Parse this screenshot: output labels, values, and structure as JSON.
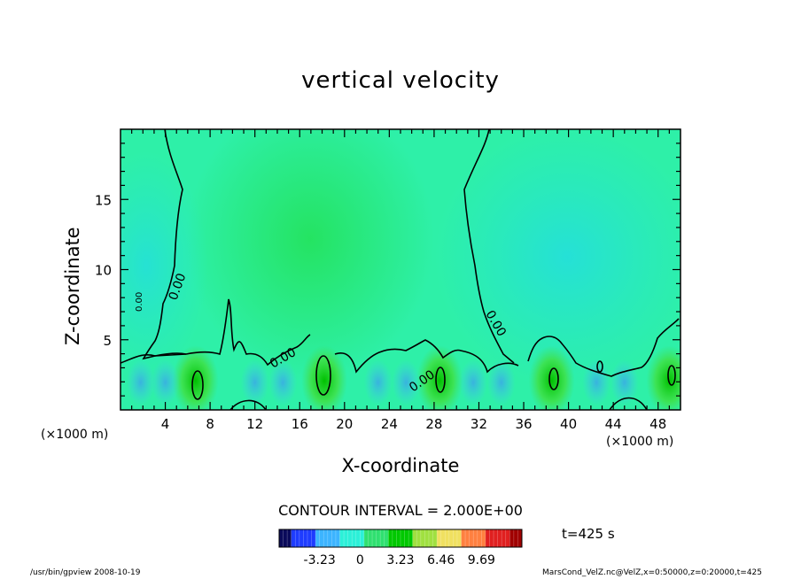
{
  "chart_data": {
    "type": "heatmap",
    "title": "vertical velocity",
    "xlabel": "X-coordinate",
    "ylabel": "Z-coordinate",
    "x_unit_label": "(×1000 m)",
    "x_unit_label_right": "(×1000 m)",
    "xlim": [
      0,
      50
    ],
    "ylim": [
      0,
      20
    ],
    "x_ticks": [
      "4",
      "8",
      "12",
      "16",
      "20",
      "24",
      "28",
      "32",
      "36",
      "40",
      "44",
      "48"
    ],
    "y_ticks": [
      "5",
      "10",
      "15"
    ],
    "contour_labels": [
      "0.00",
      "0.00",
      "0.00",
      "0.00",
      "0.00"
    ],
    "contour_interval_text": "CONTOUR INTERVAL = 2.000E+00",
    "colorbar": {
      "ticks": [
        "-3.23",
        "0",
        "3.23",
        "6.46",
        "9.69"
      ],
      "range": [
        -6.46,
        12.92
      ],
      "colors": [
        "#0a0a5a",
        "#1e3cff",
        "#3cb4ff",
        "#2cf0d8",
        "#30e070",
        "#00c800",
        "#a0e040",
        "#f0e060",
        "#ff8040",
        "#e02020",
        "#a00000"
      ]
    },
    "background_color": "#2ef0a8",
    "updraft_peaks_x": [
      6.7,
      18.2,
      28.5,
      38.5,
      49.0
    ],
    "legend": "none",
    "grid": false
  },
  "annotations": {
    "time": "t=425 s",
    "footer_left": "/usr/bin/gpview   2008-10-19",
    "footer_right": "MarsCond_VelZ.nc@VelZ,x=0:50000,z=0:20000,t=425"
  }
}
